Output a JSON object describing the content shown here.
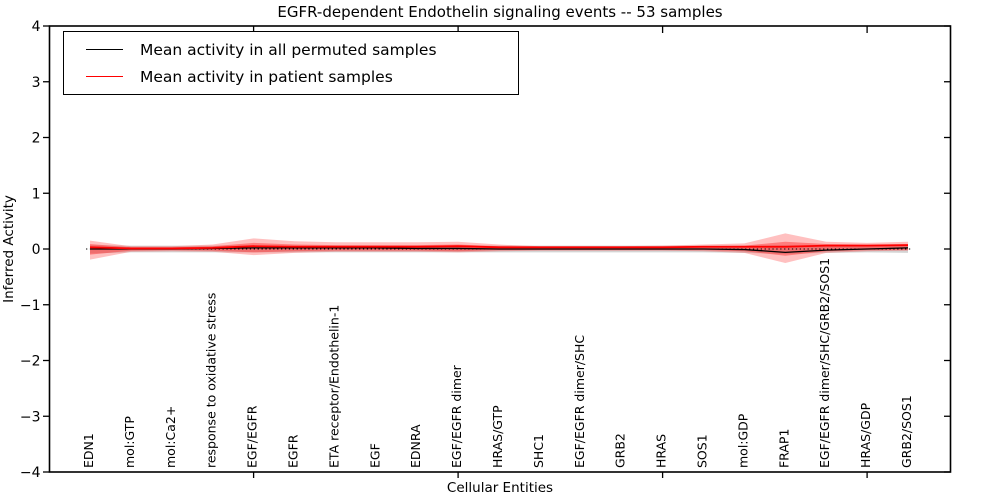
{
  "chart_data": {
    "type": "line",
    "title": "EGFR-dependent Endothelin signaling events -- 53 samples",
    "xlabel": "Cellular Entities",
    "ylabel": "Inferred Activity",
    "ylim": [
      -4,
      4
    ],
    "yticks": [
      4,
      3,
      2,
      1,
      0,
      -1,
      -2,
      -3,
      -4
    ],
    "ytick_labels": [
      "4",
      "3",
      "2",
      "1",
      "0",
      "−1",
      "−2",
      "−3",
      "−4"
    ],
    "grid": false,
    "major_xtick_indices": [
      4,
      9,
      14,
      19
    ],
    "categories": [
      "EDN1",
      "mol:GTP",
      "mol:Ca2+",
      "response to oxidative stress",
      "EGF/EGFR",
      "EGFR",
      "ETA receptor/Endothelin-1",
      "EGF",
      "EDNRA",
      "EGF/EGFR dimer",
      "HRAS/GTP",
      "SHC1",
      "EGF/EGFR dimer/SHC",
      "GRB2",
      "HRAS",
      "SOS1",
      "mol:GDP",
      "FRAP1",
      "EGF/EGFR dimer/SHC/GRB2/SOS1",
      "HRAS/GDP",
      "GRB2/SOS1"
    ],
    "series": [
      {
        "name": "Mean activity in all permuted samples",
        "color": "#000000",
        "linewidth": 1.3,
        "values": [
          0.0,
          0.0,
          0.0,
          0.01,
          0.02,
          0.02,
          0.02,
          0.02,
          0.01,
          0.01,
          0.0,
          0.0,
          0.0,
          0.0,
          0.0,
          0.0,
          -0.01,
          -0.06,
          -0.02,
          0.0,
          0.02
        ]
      },
      {
        "name": "Mean activity in patient samples",
        "color": "#ff0000",
        "linewidth": 1.8,
        "values": [
          0.03,
          0.01,
          0.01,
          0.02,
          0.05,
          0.04,
          0.04,
          0.04,
          0.04,
          0.05,
          0.03,
          0.03,
          0.03,
          0.03,
          0.03,
          0.04,
          0.04,
          0.04,
          0.06,
          0.06,
          0.07
        ]
      }
    ],
    "bands": [
      {
        "name": "permuted-samples-spread",
        "color": "#aaaaaa",
        "opacity": 0.5,
        "upper": [
          0.07,
          0.06,
          0.06,
          0.06,
          0.06,
          0.06,
          0.06,
          0.06,
          0.06,
          0.06,
          0.06,
          0.06,
          0.06,
          0.06,
          0.06,
          0.06,
          0.06,
          0.07,
          0.06,
          0.06,
          0.07
        ],
        "lower": [
          -0.08,
          -0.06,
          -0.06,
          -0.06,
          -0.06,
          -0.06,
          -0.06,
          -0.06,
          -0.06,
          -0.06,
          -0.06,
          -0.06,
          -0.06,
          -0.06,
          -0.06,
          -0.06,
          -0.07,
          -0.09,
          -0.07,
          -0.06,
          -0.07
        ]
      },
      {
        "name": "patient-samples-spread-outer",
        "color": "#ff2d2d",
        "opacity": 0.3,
        "upper": [
          0.15,
          0.05,
          0.05,
          0.08,
          0.19,
          0.14,
          0.12,
          0.12,
          0.12,
          0.13,
          0.08,
          0.05,
          0.05,
          0.05,
          0.06,
          0.08,
          0.1,
          0.28,
          0.13,
          0.11,
          0.13
        ],
        "lower": [
          -0.19,
          -0.05,
          -0.04,
          -0.05,
          -0.11,
          -0.07,
          -0.05,
          -0.05,
          -0.05,
          -0.06,
          -0.04,
          -0.03,
          -0.03,
          -0.03,
          -0.03,
          -0.04,
          -0.07,
          -0.25,
          -0.07,
          -0.04,
          -0.03
        ]
      },
      {
        "name": "patient-samples-spread-inner",
        "color": "#ff2d2d",
        "opacity": 0.45,
        "upper": [
          0.09,
          0.03,
          0.03,
          0.05,
          0.11,
          0.08,
          0.07,
          0.07,
          0.07,
          0.08,
          0.05,
          0.04,
          0.04,
          0.04,
          0.04,
          0.05,
          0.06,
          0.13,
          0.09,
          0.08,
          0.09
        ],
        "lower": [
          -0.1,
          -0.03,
          -0.02,
          -0.03,
          -0.06,
          -0.04,
          -0.03,
          -0.03,
          -0.03,
          -0.04,
          -0.02,
          -0.02,
          -0.02,
          -0.02,
          -0.02,
          -0.02,
          -0.04,
          -0.12,
          -0.04,
          -0.02,
          -0.02
        ]
      }
    ],
    "zero_line": {
      "y": 0,
      "style": "dotted",
      "color": "#000000"
    },
    "legend": {
      "location": "upper left",
      "entries": [
        {
          "label": "Mean activity in all permuted samples",
          "color": "#000000"
        },
        {
          "label": "Mean activity in patient samples",
          "color": "#ff0000"
        }
      ]
    }
  }
}
